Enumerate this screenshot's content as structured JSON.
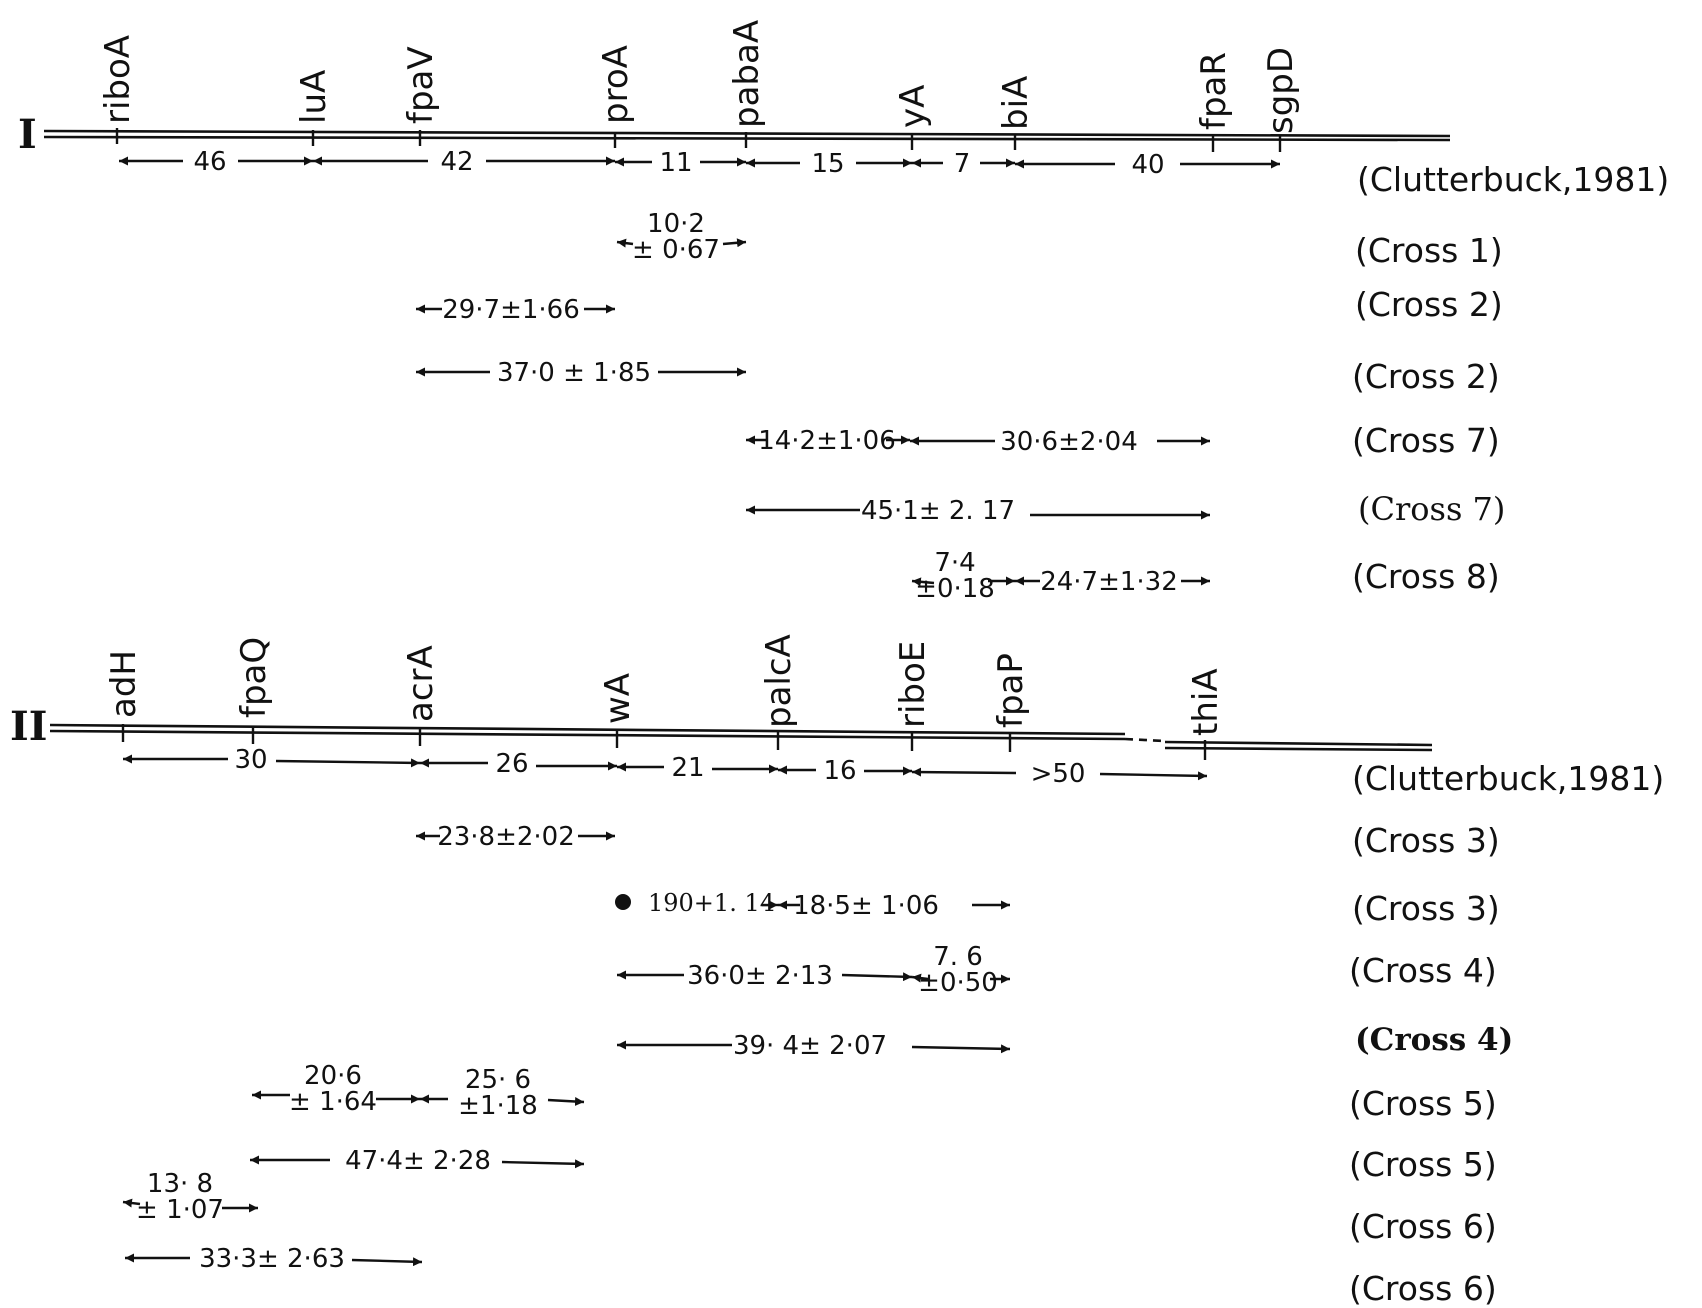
{
  "linkage_groups": [
    {
      "id": "I",
      "label": "I",
      "genes": [
        "riboA",
        "luA",
        "fpaV",
        "proA",
        "pabaA",
        "yA",
        "biA",
        "fpaR",
        "sgpD"
      ],
      "reference": {
        "distances": [
          "46",
          "42",
          "11",
          "15",
          "7",
          "40"
        ],
        "source": "(Clutterbuck,1981)"
      },
      "crosses": [
        {
          "values": [
            "10·2\n± 0·67"
          ],
          "source": "(Cross 1)"
        },
        {
          "values": [
            "29·7±1·66"
          ],
          "source": "(Cross 2)"
        },
        {
          "values": [
            "37·0 ± 1·85"
          ],
          "source": "(Cross 2)"
        },
        {
          "values": [
            "14·2±1·06",
            "30·6±2·04"
          ],
          "source": "(Cross 7)"
        },
        {
          "values": [
            "45·1± 2. 17"
          ],
          "source": "(Cross 7)"
        },
        {
          "values": [
            "7·4\n±0·18",
            "24·7±1·32"
          ],
          "source": "(Cross 8)"
        }
      ]
    },
    {
      "id": "II",
      "label": "II",
      "genes": [
        "adH",
        "fpaQ",
        "acrA",
        "wA",
        "palcA",
        "riboE",
        "fpaP",
        "thiA"
      ],
      "reference": {
        "distances": [
          "30",
          "26",
          "21",
          "16",
          ">50"
        ],
        "source": "(Clutterbuck,1981)"
      },
      "crosses": [
        {
          "values": [
            "23·8±2·02"
          ],
          "source": "(Cross 3)"
        },
        {
          "values": [
            "190+1. 14",
            "18·5± 1·06"
          ],
          "source": "(Cross 3)"
        },
        {
          "values": [
            "36·0± 2·13",
            "7. 6\n±0·50"
          ],
          "source": "(Cross 4)"
        },
        {
          "values": [
            "39· 4± 2·07"
          ],
          "source": "(Cross 4)"
        },
        {
          "values": [
            "20·6\n± 1·64",
            "25· 6\n±1·18"
          ],
          "source": "(Cross 5)"
        },
        {
          "values": [
            "47·4± 2·28"
          ],
          "source": "(Cross 5)"
        },
        {
          "values": [
            "13· 8\n± 1·07"
          ],
          "source": "(Cross 6)"
        },
        {
          "values": [
            "33·3± 2·63"
          ],
          "source": "(Cross 6)"
        }
      ]
    }
  ]
}
